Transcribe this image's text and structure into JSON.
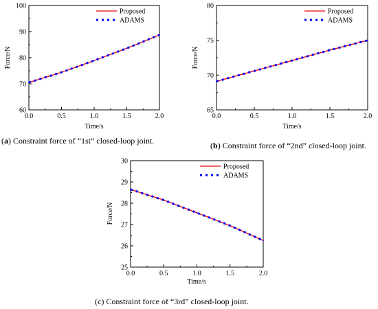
{
  "chart_data": [
    {
      "type": "line",
      "caption_letter": "a",
      "caption_text": "Constraint force of “1st” closed-loop joint.",
      "xlabel": "Time/s",
      "ylabel": "Force/N",
      "xlim": [
        0,
        2
      ],
      "ylim": [
        60,
        100
      ],
      "xticks": [
        "0.0",
        "0.5",
        "1.0",
        "1.5",
        "2.0"
      ],
      "yticks": [
        "60",
        "70",
        "80",
        "90",
        "100"
      ],
      "legend_position": "top-right",
      "series": [
        {
          "name": "Proposed",
          "style": "solid",
          "color": "#e8000b",
          "x": [
            0,
            0.5,
            1.0,
            1.5,
            2.0
          ],
          "y": [
            70.5,
            74.4,
            78.9,
            83.6,
            88.7
          ]
        },
        {
          "name": "ADAMS",
          "style": "dotted",
          "color": "#0000ff",
          "x": [
            0,
            0.5,
            1.0,
            1.5,
            2.0
          ],
          "y": [
            70.5,
            74.4,
            78.9,
            83.6,
            88.7
          ]
        }
      ]
    },
    {
      "type": "line",
      "caption_letter": "b",
      "caption_text": "Constraint force of “2nd” closed-loop joint.",
      "xlabel": "Time/s",
      "ylabel": "Force/N",
      "xlim": [
        0,
        2
      ],
      "ylim": [
        65,
        80
      ],
      "xticks": [
        "0.0",
        "0.5",
        "1.0",
        "1.5",
        "2.0"
      ],
      "yticks": [
        "65",
        "70",
        "75",
        "80"
      ],
      "legend_position": "top-right",
      "series": [
        {
          "name": "Proposed",
          "style": "solid",
          "color": "#e8000b",
          "x": [
            0,
            0.5,
            1.0,
            1.5,
            2.0
          ],
          "y": [
            69.1,
            70.6,
            72.1,
            73.6,
            75.0
          ]
        },
        {
          "name": "ADAMS",
          "style": "dotted",
          "color": "#0000ff",
          "x": [
            0,
            0.5,
            1.0,
            1.5,
            2.0
          ],
          "y": [
            69.1,
            70.6,
            72.1,
            73.6,
            75.0
          ]
        }
      ]
    },
    {
      "type": "line",
      "caption_letter": "c",
      "caption_text": "Constraint force of “3rd” closed-loop joint.",
      "xlabel": "Time/s",
      "ylabel": "Force/N",
      "xlim": [
        0,
        2
      ],
      "ylim": [
        25,
        30
      ],
      "xticks": [
        "0.0",
        "0.5",
        "1.0",
        "1.5",
        "2.0"
      ],
      "yticks": [
        "25",
        "26",
        "27",
        "28",
        "29",
        "30"
      ],
      "legend_position": "top-right",
      "series": [
        {
          "name": "Proposed",
          "style": "solid",
          "color": "#e8000b",
          "x": [
            0,
            0.5,
            1.0,
            1.5,
            2.0
          ],
          "y": [
            28.65,
            28.15,
            27.55,
            26.95,
            26.25
          ]
        },
        {
          "name": "ADAMS",
          "style": "dotted",
          "color": "#0000ff",
          "x": [
            0,
            0.5,
            1.0,
            1.5,
            2.0
          ],
          "y": [
            28.65,
            28.15,
            27.55,
            26.95,
            26.25
          ]
        }
      ]
    }
  ]
}
